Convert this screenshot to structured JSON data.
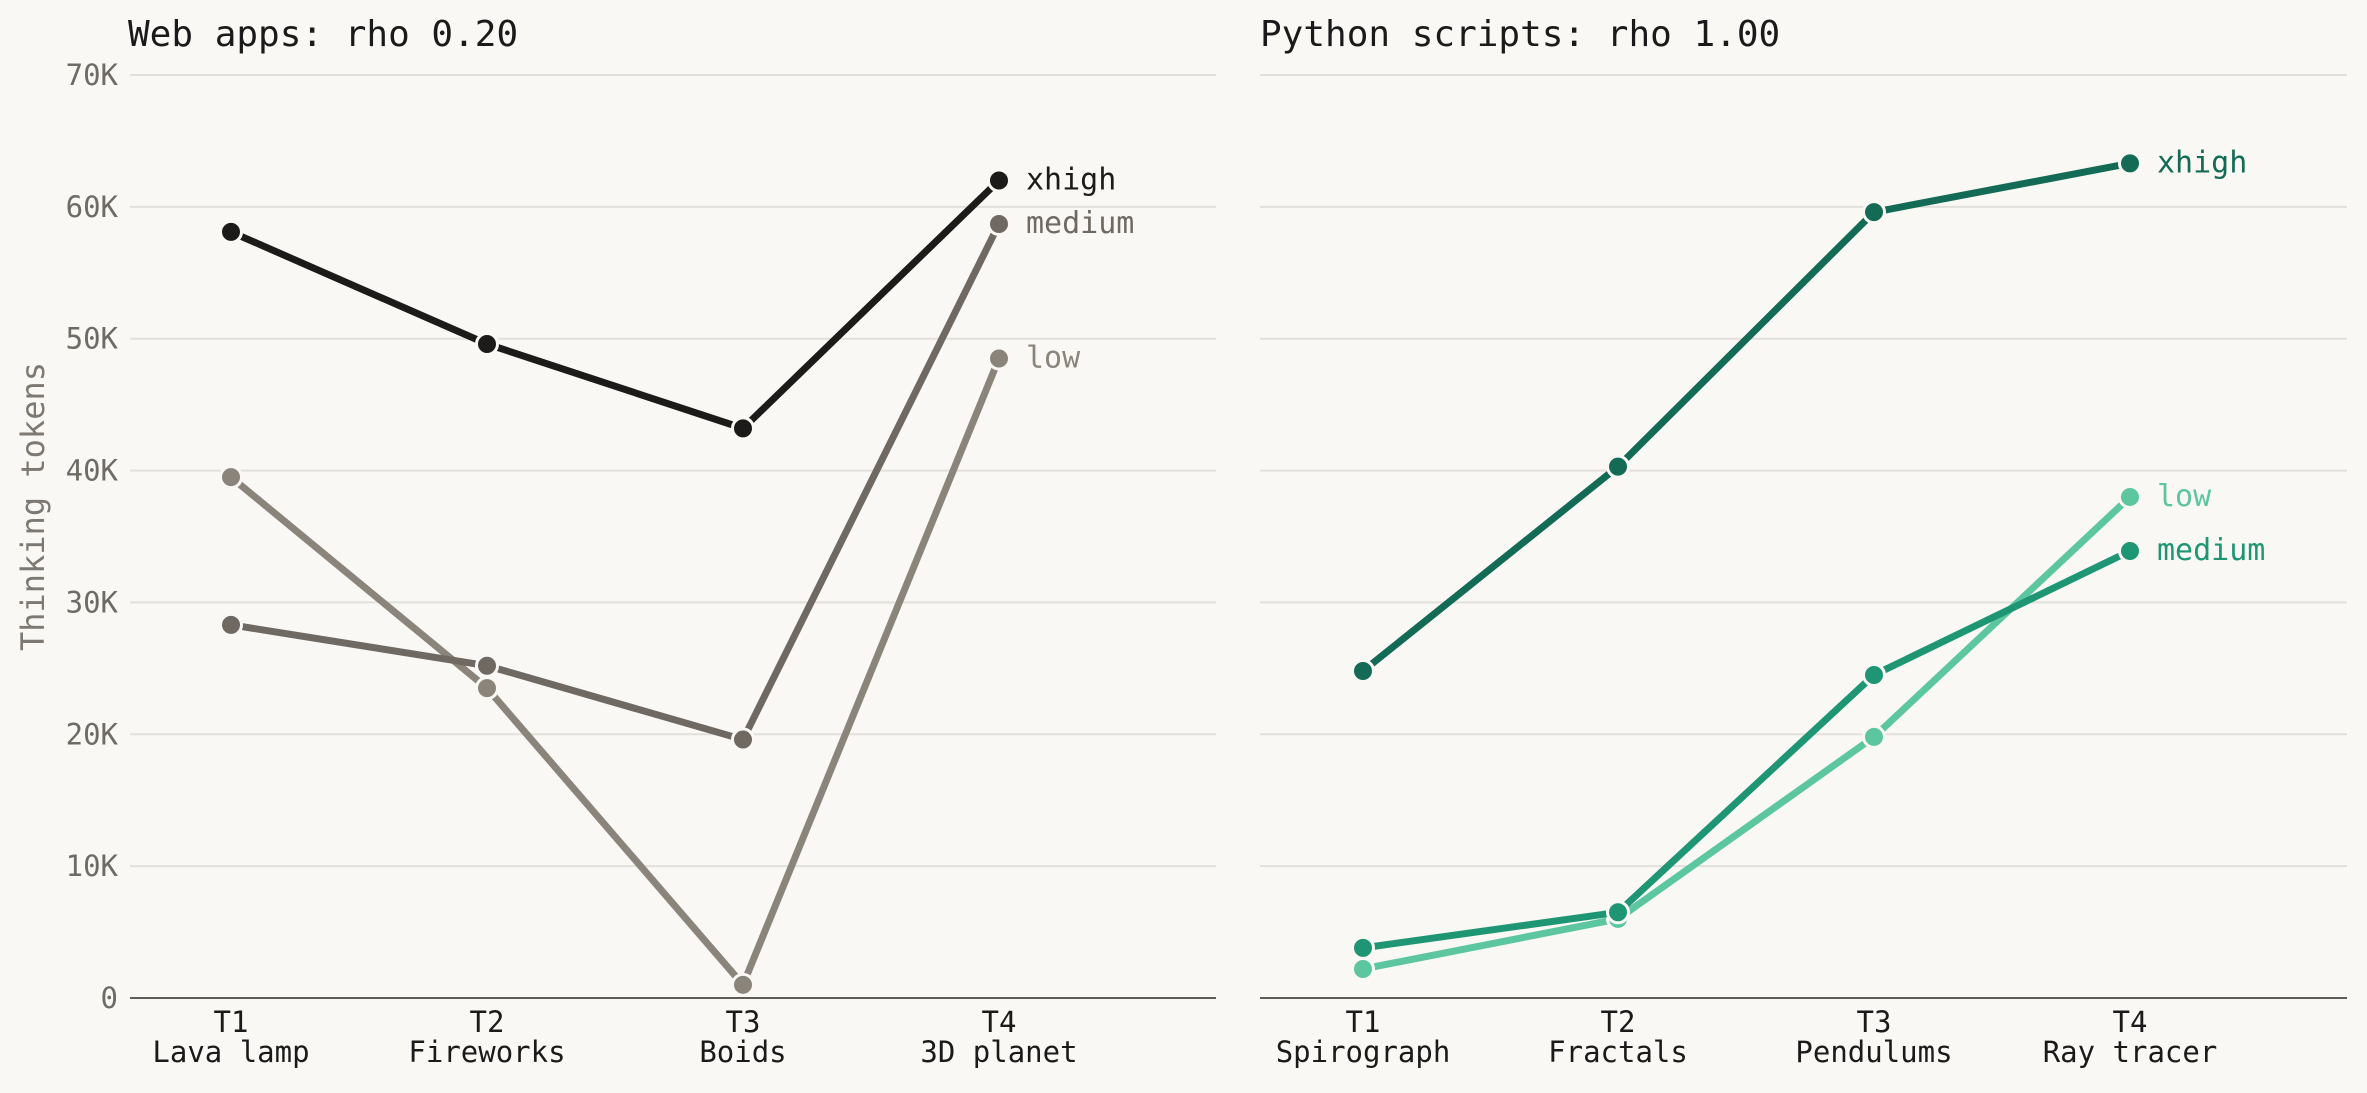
{
  "chart_data": [
    {
      "type": "line",
      "title": "Web apps: rho 0.20",
      "ylabel": "Thinking tokens",
      "ylim": [
        0,
        70000
      ],
      "yticks": [
        0,
        10000,
        20000,
        30000,
        40000,
        50000,
        60000,
        70000
      ],
      "ytick_labels": [
        "0",
        "10K",
        "20K",
        "30K",
        "40K",
        "50K",
        "60K",
        "70K"
      ],
      "categories": [
        {
          "code": "T1",
          "name": "Lava lamp"
        },
        {
          "code": "T2",
          "name": "Fireworks"
        },
        {
          "code": "T3",
          "name": "Boids"
        },
        {
          "code": "T4",
          "name": "3D planet"
        }
      ],
      "grid": "horizontal",
      "legend": "end-of-line labels",
      "series": [
        {
          "name": "low",
          "color": "#8a847a",
          "values": [
            39500,
            23500,
            1000,
            48500
          ]
        },
        {
          "name": "medium",
          "color": "#6f6962",
          "values": [
            28300,
            25200,
            19600,
            58700
          ]
        },
        {
          "name": "xhigh",
          "color": "#1c1b19",
          "values": [
            58100,
            49600,
            43200,
            62000
          ]
        }
      ]
    },
    {
      "type": "line",
      "title": "Python scripts: rho 1.00",
      "ylim": [
        0,
        70000
      ],
      "categories": [
        {
          "code": "T1",
          "name": "Spirograph"
        },
        {
          "code": "T2",
          "name": "Fractals"
        },
        {
          "code": "T3",
          "name": "Pendulums"
        },
        {
          "code": "T4",
          "name": "Ray tracer"
        }
      ],
      "grid": "horizontal",
      "legend": "end-of-line labels",
      "series": [
        {
          "name": "low",
          "color": "#5cc6a0",
          "values": [
            2200,
            6000,
            19800,
            38000
          ]
        },
        {
          "name": "medium",
          "color": "#1f9673",
          "values": [
            3800,
            6500,
            24500,
            33900
          ]
        },
        {
          "name": "xhigh",
          "color": "#136b55",
          "values": [
            24800,
            40300,
            59600,
            63300
          ]
        }
      ]
    }
  ]
}
